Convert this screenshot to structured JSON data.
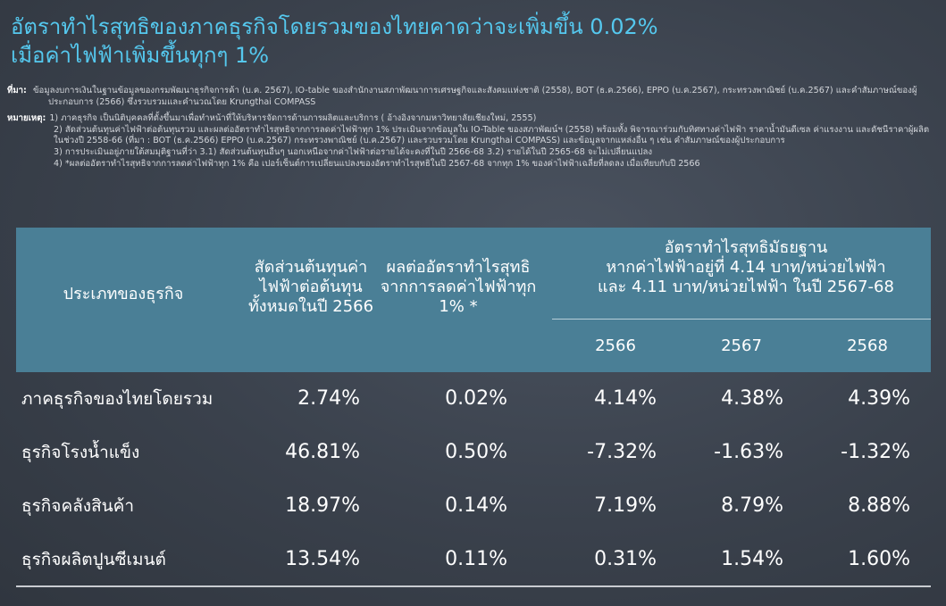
{
  "title": {
    "line1": "อัตราทำไรสุทธิของภาคธุรกิจโดยรวมของไทยคาดว่าจะเพิ่มขึ้น 0.02%",
    "line2": "เมื่อค่าไฟฟ้าเพิ่มขึ้นทุกๆ 1%"
  },
  "notes": {
    "source_label": "ที่มา:",
    "source_text": "ข้อมูลงบการเงินในฐานข้อมูลของกรมพัฒนาธุรกิจการค้า (บ.ค. 2567), IO-table ของสำนักงานสภาพัฒนาการเศรษฐกิจและสังคมแห่งชาติ (2558), BOT (ธ.ค.2566), EPPO (บ.ค.2567), กระทรวงพาณิชย์ (บ.ค.2567) และคำสัมภาษณ์ของผู้ประกอบการ (2566) ซึ่งรวบรวมและคำนวณโดย Krungthai COMPASS",
    "remark_label": "หมายเหตุ:",
    "items": [
      "1) ภาคธุรกิจ เป็นนิติบุคคลที่ตั้งขึ้นมาเพื่อทำหน้าที่ให้บริหารจัดการด้านการผลิตและบริการ ( อ้างอิงจากมหาวิทยาลัยเชียงใหม่, 2555)",
      "2) สัดส่วนต้นทุนค่าไฟฟ้าต่อต้นทุนรวม และผลต่ออัตราทำไรสุทธิจากการลดค่าไฟฟ้าทุก 1% ประเมินจากข้อมูลใน IO-Table ของสภาพัฒน์ฯ (2558) พร้อมทั้ง พิจารณาร่วมกับทิศทางค่าไฟฟ้า ราคาน้ำมันดีเซล ค่าแรงงาน และดัชนีราคาผู้ผลิตในช่วงปี 2558-66 (ที่มา : BOT (ธ.ค.2566) EPPO (บ.ค.2567) กระทรวงพาณิชย์ (บ.ค.2567) และรวบรวมโดย Krungthai COMPASS) และข้อมูลจากแหล่งอื่น ๆ เช่น คำสัมภาษณ์ของผู้ประกอบการ",
      "3) การประเมินอยู่ภายใต้สมมุติฐานที่ว่า 3.1) สัดส่วนต้นทุนอื่นๆ นอกเหนือจากค่าไฟฟ้าต่อรายได้จะคงที่ในปี 2566-68 3.2) รายได้ในปี 2565-68 จะไม่เปลี่ยนแปลง",
      "4) *ผลต่ออัตราทำไรสุทธิจากการลดค่าไฟฟ้าทุก 1% คือ เปอร์เซ็นต์การเปลี่ยนแปลงของอัตราทำไรสุทธิในปี 2567-68 จากทุก 1% ของค่าไฟฟ้าเฉลี่ยที่ลดลง เมื่อเทียบกับปี 2566"
    ]
  },
  "table": {
    "header": {
      "type": "ประเภทของธุรกิจ",
      "share": "สัดส่วนต้นทุนค่าไฟฟ้าต่อต้นทุนทั้งหมดในปี 2566",
      "effect": "ผลต่ออัตราทำไรสุทธิจากการลดค่าไฟฟ้าทุก 1% *",
      "rate_line1": "อัตราทำไรสุทธิมัธยฐาน",
      "rate_line2": "หากค่าไฟฟ้าอยู่ที่ 4.14 บาท/หน่วยไฟฟ้า",
      "rate_line3": "และ 4.11 บาท/หน่วยไฟฟ้า ในปี 2567-68",
      "years": [
        "2566",
        "2567",
        "2568"
      ]
    },
    "rows": [
      {
        "name": "ภาคธุรกิจของไทยโดยรวม",
        "share": "2.74%",
        "effect": "0.02%",
        "y2566": "4.14%",
        "y2567": "4.38%",
        "y2568": "4.39%"
      },
      {
        "name": "ธุรกิจโรงน้ำแข็ง",
        "share": "46.81%",
        "effect": "0.50%",
        "y2566": "-7.32%",
        "y2567": "-1.63%",
        "y2568": "-1.32%"
      },
      {
        "name": "ธุรกิจคลังสินค้า",
        "share": "18.97%",
        "effect": "0.14%",
        "y2566": "7.19%",
        "y2567": "8.79%",
        "y2568": "8.88%"
      },
      {
        "name": "ธุรกิจผลิตปูนซีเมนต์",
        "share": "13.54%",
        "effect": "0.11%",
        "y2566": "0.31%",
        "y2567": "1.54%",
        "y2568": "1.60%"
      }
    ]
  }
}
